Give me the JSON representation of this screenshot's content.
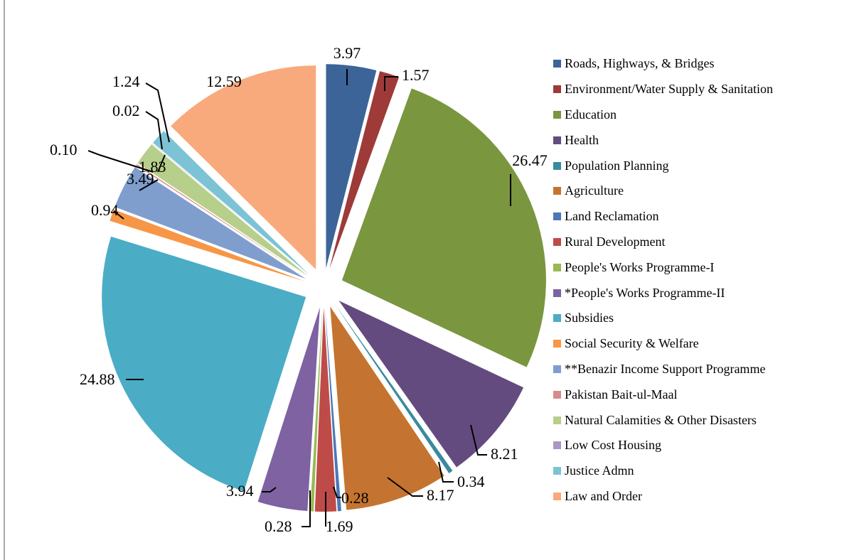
{
  "chart_data": {
    "type": "pie",
    "title": "",
    "categories": [
      "Roads, Highways, & Bridges",
      "Environment/Water Supply & Sanitation",
      "Education",
      "Health",
      "Population Planning",
      "Agriculture",
      "Land Reclamation",
      "Rural Development",
      "People's Works Programme-I",
      "*People's Works Programme-II",
      "Subsidies",
      "Social Security & Welfare",
      "**Benazir Income Support Programme",
      "Pakistan Bait-ul-Maal",
      "Natural Calamities & Other Disasters",
      "Low Cost Housing",
      "Justice Admn",
      "Law and Order"
    ],
    "values": [
      3.97,
      1.57,
      26.47,
      8.21,
      0.34,
      8.17,
      0.28,
      1.69,
      0.28,
      3.94,
      24.88,
      0.94,
      3.49,
      0.1,
      1.83,
      0.02,
      1.24,
      12.59
    ],
    "data_labels": [
      "3.97",
      "1.57",
      "26.47",
      "8.21",
      "0.34",
      "8.17",
      "0.28",
      "1.69",
      "0.28",
      "3.94",
      "24.88",
      "0.94",
      "3.49",
      "0.10",
      "1.83",
      "0.02",
      "1.24",
      "12.59"
    ],
    "colors": [
      "#3C6498",
      "#9E3B39",
      "#7A963F",
      "#634B7F",
      "#3A8A9E",
      "#C47430",
      "#4A78B4",
      "#BE4B48",
      "#98B954",
      "#7E62A1",
      "#4BACC6",
      "#F79646",
      "#7F9ECE",
      "#D58D8B",
      "#B6CF8B",
      "#A898C2",
      "#7CC3D6",
      "#F9AA7C"
    ],
    "legend_position": "right",
    "exploded": true
  }
}
